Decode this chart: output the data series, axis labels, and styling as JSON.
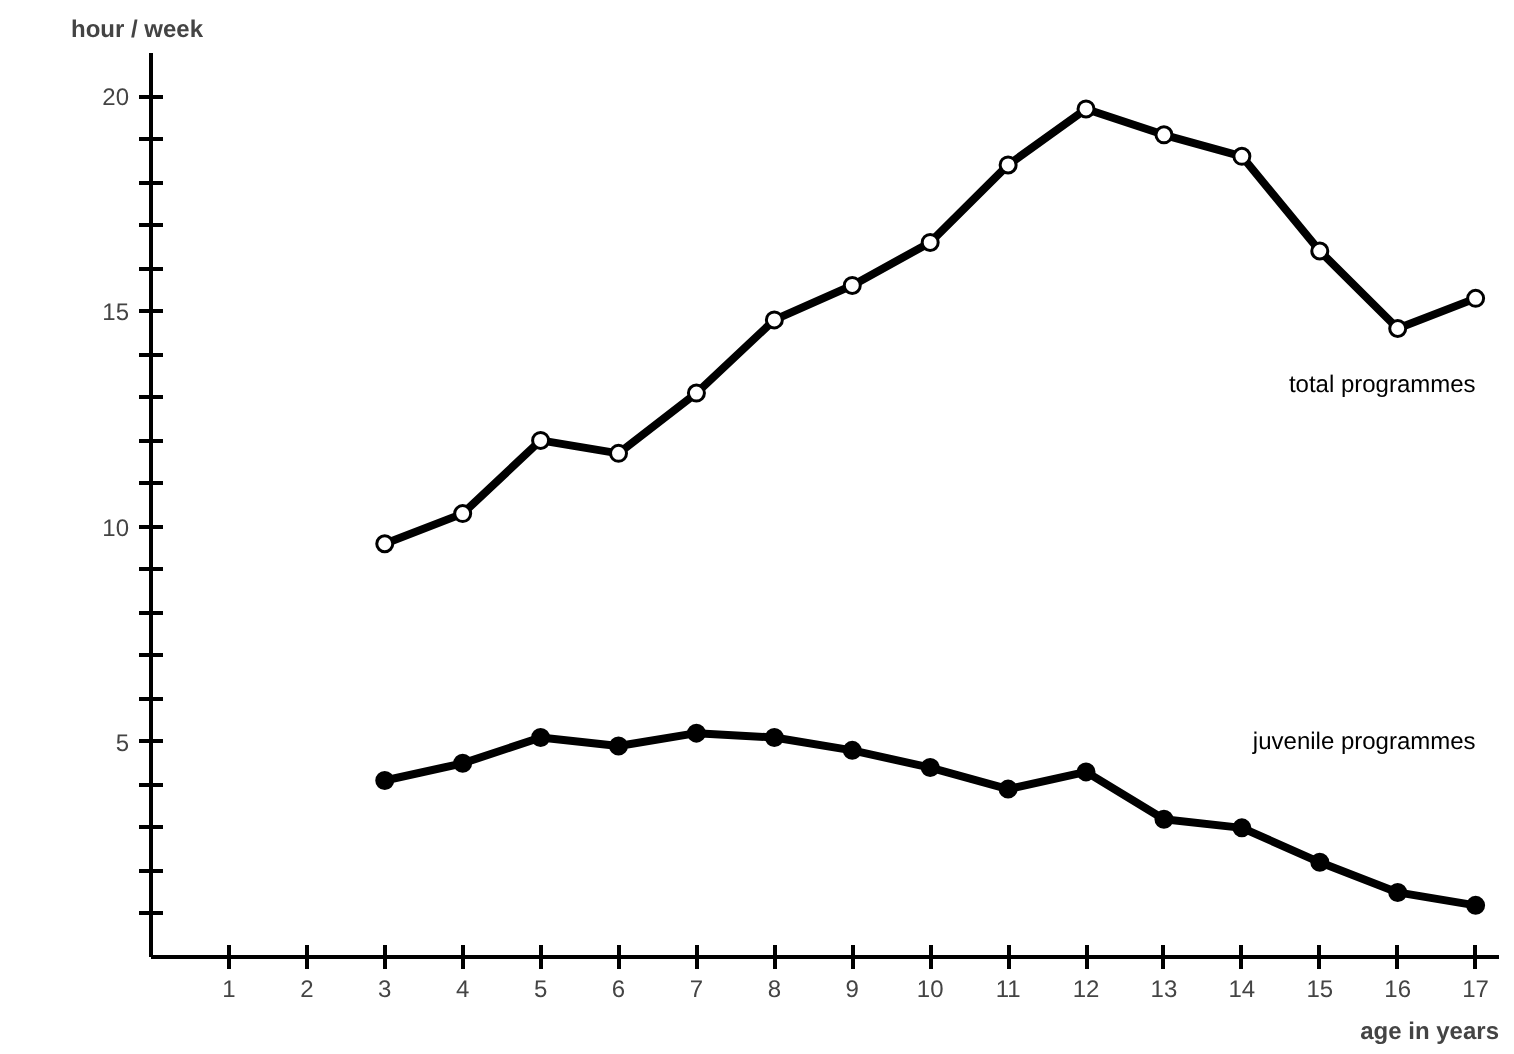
{
  "chart_data": {
    "type": "line",
    "ylabel": "hour / week",
    "xlabel": "age in years",
    "x": [
      3,
      4,
      5,
      6,
      7,
      8,
      9,
      10,
      11,
      12,
      13,
      14,
      15,
      16,
      17
    ],
    "series": [
      {
        "name": "total programmes",
        "color": "#000000",
        "marker": "circle",
        "values": [
          9.6,
          10.3,
          12.0,
          11.7,
          13.1,
          14.8,
          15.6,
          16.6,
          18.4,
          19.7,
          19.1,
          18.6,
          16.4,
          14.6,
          15.3
        ]
      },
      {
        "name": "juvenile programmes",
        "color": "#000000",
        "marker": "circle",
        "values": [
          4.1,
          4.5,
          5.1,
          4.9,
          5.2,
          5.1,
          4.8,
          4.4,
          3.9,
          4.3,
          3.2,
          3.0,
          2.2,
          1.5,
          1.2
        ]
      }
    ],
    "xlim": [
      0,
      17.3
    ],
    "ylim": [
      0,
      21
    ],
    "xticks": [
      1,
      2,
      3,
      4,
      5,
      6,
      7,
      8,
      9,
      10,
      11,
      12,
      13,
      14,
      15,
      16,
      17
    ],
    "yticks": [
      {
        "value": 1,
        "label": null
      },
      {
        "value": 2,
        "label": null
      },
      {
        "value": 3,
        "label": null
      },
      {
        "value": 4,
        "label": null
      },
      5,
      {
        "value": 6,
        "label": null
      },
      {
        "value": 7,
        "label": null
      },
      {
        "value": 8,
        "label": null
      },
      {
        "value": 9,
        "label": null
      },
      10,
      {
        "value": 11,
        "label": null
      },
      {
        "value": 12,
        "label": null
      },
      {
        "value": 13,
        "label": null
      },
      {
        "value": 14,
        "label": null
      },
      15,
      {
        "value": 16,
        "label": null
      },
      {
        "value": 17,
        "label": null
      },
      {
        "value": 18,
        "label": null
      },
      {
        "value": 19,
        "label": null
      },
      20
    ],
    "grid": false,
    "line_style": "solid"
  }
}
